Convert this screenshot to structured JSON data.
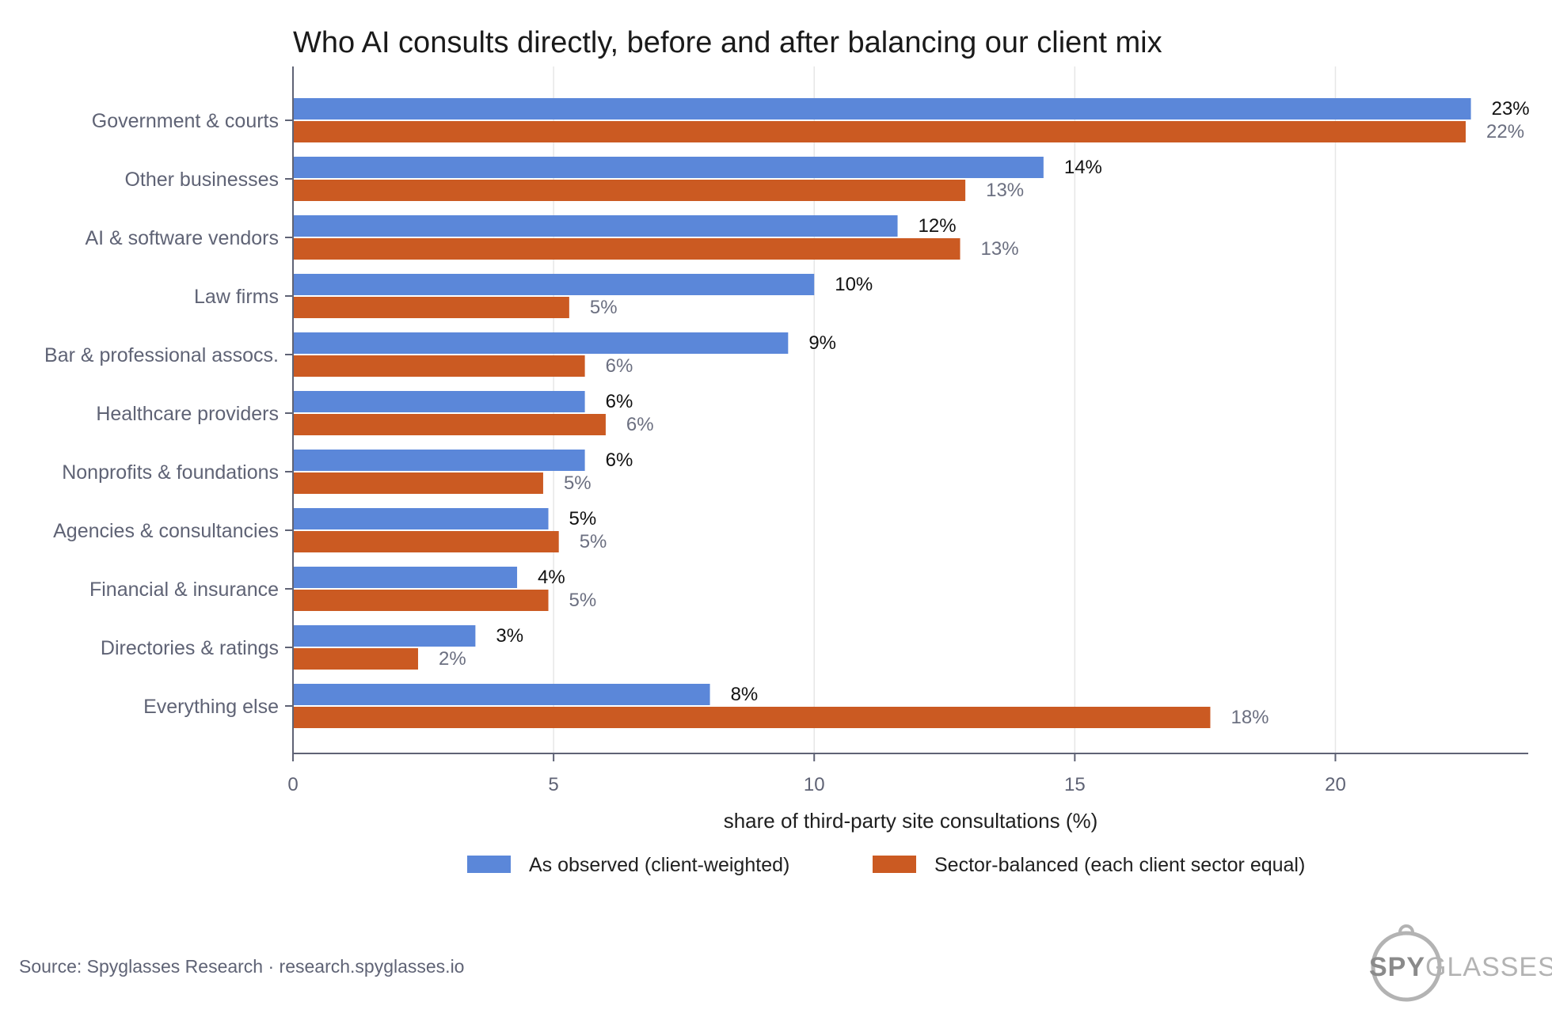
{
  "chart_data": {
    "type": "bar",
    "orientation": "horizontal",
    "title": "Who AI consults directly, before and after balancing our client mix",
    "xlabel": "share of third-party site consultations  (%)",
    "ylabel": "",
    "xlim": [
      0,
      23.7
    ],
    "xticks": [
      0,
      5,
      10,
      15,
      20
    ],
    "grid": true,
    "legend_position": "bottom",
    "categories": [
      "Government & courts",
      "Other businesses",
      "AI & software vendors",
      "Law firms",
      "Bar & professional assocs.",
      "Healthcare providers",
      "Nonprofits & foundations",
      "Agencies & consultancies",
      "Financial & insurance",
      "Directories & ratings",
      "Everything else"
    ],
    "series": [
      {
        "name": "As observed (client-weighted)",
        "color": "#5b87d9",
        "values": [
          22.6,
          14.4,
          11.6,
          10.0,
          9.5,
          5.6,
          5.6,
          4.9,
          4.3,
          3.5,
          8.0
        ],
        "labels": [
          "23%",
          "14%",
          "12%",
          "10%",
          "9%",
          "6%",
          "6%",
          "5%",
          "4%",
          "3%",
          "8%"
        ]
      },
      {
        "name": "Sector-balanced (each client sector equal)",
        "color": "#cb5a22",
        "values": [
          22.5,
          12.9,
          12.8,
          5.3,
          5.6,
          6.0,
          4.8,
          5.1,
          4.9,
          2.4,
          17.6
        ],
        "labels": [
          "22%",
          "13%",
          "13%",
          "5%",
          "6%",
          "6%",
          "5%",
          "5%",
          "5%",
          "2%",
          "18%"
        ]
      }
    ]
  },
  "footer": {
    "source": "Source: Spyglasses Research · research.spyglasses.io"
  },
  "logo": {
    "text_bold": "SPY",
    "text_light": "GLASSES",
    "color_bold": "#8a8a8a",
    "color_light": "#b3b3b3"
  }
}
